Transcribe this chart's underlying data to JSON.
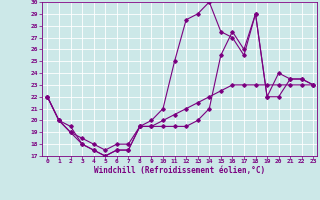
{
  "xlabel": "Windchill (Refroidissement éolien,°C)",
  "line_color": "#7b0080",
  "bg_color": "#cce8e8",
  "grid_color": "#aad4d4",
  "xlim": [
    -0.5,
    23.3
  ],
  "ylim": [
    17,
    30
  ],
  "yticks": [
    17,
    18,
    19,
    20,
    21,
    22,
    23,
    24,
    25,
    26,
    27,
    28,
    29,
    30
  ],
  "xticks": [
    0,
    1,
    2,
    3,
    4,
    5,
    6,
    7,
    8,
    9,
    10,
    11,
    12,
    13,
    14,
    15,
    16,
    17,
    18,
    19,
    20,
    21,
    22,
    23
  ],
  "lines": [
    {
      "x": [
        0,
        1,
        2,
        3,
        4,
        5,
        6,
        7,
        8,
        9,
        10,
        11,
        12,
        13,
        14,
        15,
        16,
        17,
        18,
        19,
        20,
        21,
        22,
        23
      ],
      "y": [
        22,
        20,
        19.5,
        18,
        17.5,
        17,
        17.5,
        17.5,
        19.5,
        20,
        21,
        25,
        28.5,
        29,
        30,
        27.5,
        27,
        25.5,
        29,
        22,
        24,
        23.5,
        23.5,
        23
      ]
    },
    {
      "x": [
        0,
        1,
        2,
        3,
        4,
        5,
        6,
        7,
        8,
        9,
        10,
        11,
        12,
        13,
        14,
        15,
        16,
        17,
        18,
        19,
        20,
        21,
        22,
        23
      ],
      "y": [
        22,
        20,
        19,
        18,
        17.5,
        17,
        17.5,
        17.5,
        19.5,
        19.5,
        19.5,
        19.5,
        19.5,
        20,
        21,
        25.5,
        27.5,
        26,
        29,
        22,
        22,
        23.5,
        23.5,
        23
      ]
    },
    {
      "x": [
        0,
        1,
        2,
        3,
        4,
        5,
        6,
        7,
        8,
        9,
        10,
        11,
        12,
        13,
        14,
        15,
        16,
        17,
        18,
        19,
        20,
        21,
        22,
        23
      ],
      "y": [
        22,
        20,
        19,
        18.5,
        18,
        17.5,
        18,
        18,
        19.5,
        19.5,
        20,
        20.5,
        21,
        21.5,
        22,
        22.5,
        23,
        23,
        23,
        23,
        23,
        23,
        23,
        23
      ]
    }
  ]
}
